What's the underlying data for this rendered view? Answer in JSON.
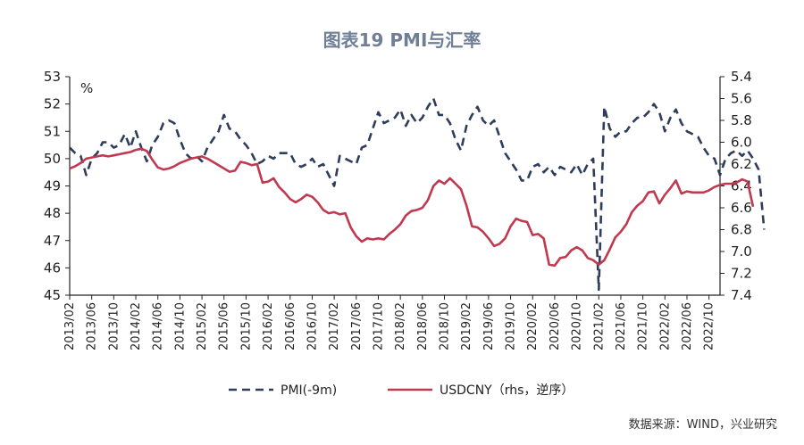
{
  "page": {
    "background": "#ffffff"
  },
  "chart_data": {
    "type": "line",
    "title": "图表19 PMI与汇率",
    "left_unit": "%",
    "source": "数据来源：WIND，兴业研究",
    "left_axis": {
      "min": 45,
      "max": 53,
      "ticks": [
        45,
        46,
        47,
        48,
        49,
        50,
        51,
        52,
        53
      ]
    },
    "right_axis": {
      "min": 5.4,
      "max": 7.4,
      "reversed": true,
      "ticks": [
        "5.4",
        "5.6",
        "5.8",
        "6.0",
        "6.2",
        "6.4",
        "6.6",
        "6.8",
        "7.0",
        "7.2",
        "7.4"
      ]
    },
    "x_axis": {
      "start": "2013/02",
      "end": "2022/12",
      "tick_labels": [
        "2013/02",
        "2013/06",
        "2013/10",
        "2014/02",
        "2014/06",
        "2014/10",
        "2015/02",
        "2015/06",
        "2015/10",
        "2016/02",
        "2016/06",
        "2016/10",
        "2017/02",
        "2017/06",
        "2017/10",
        "2018/02",
        "2018/06",
        "2018/10",
        "2019/02",
        "2019/06",
        "2019/10",
        "2020/02",
        "2020/06",
        "2020/10",
        "2021/02",
        "2021/06",
        "2021/10",
        "2022/02",
        "2022/06",
        "2022/10"
      ]
    },
    "grid": false,
    "legend_position": "bottom",
    "series": [
      {
        "name": "PMI(-9m)",
        "axis": "left",
        "color": "#2e3d5c",
        "style": "dashed",
        "start": "2013/02",
        "values": [
          50.4,
          50.2,
          50.1,
          49.4,
          50.0,
          50.2,
          50.6,
          50.6,
          50.4,
          50.5,
          50.9,
          50.4,
          51.0,
          50.4,
          49.9,
          50.5,
          50.8,
          51.3,
          51.4,
          51.3,
          50.7,
          50.2,
          50.0,
          50.1,
          49.9,
          50.4,
          50.7,
          51.0,
          51.6,
          51.1,
          51.0,
          50.7,
          50.5,
          50.2,
          49.8,
          49.9,
          50.1,
          50.0,
          50.2,
          50.2,
          50.2,
          49.8,
          49.7,
          49.8,
          50.0,
          49.7,
          49.8,
          49.4,
          49.0,
          50.1,
          50.0,
          49.9,
          49.8,
          50.4,
          50.5,
          51.1,
          51.7,
          51.3,
          51.4,
          51.5,
          51.8,
          51.2,
          51.6,
          51.3,
          51.5,
          51.9,
          52.2,
          51.6,
          51.6,
          51.3,
          50.7,
          50.3,
          51.2,
          51.6,
          51.9,
          51.4,
          51.2,
          51.4,
          50.8,
          50.2,
          49.9,
          49.6,
          49.2,
          49.2,
          49.7,
          49.8,
          49.5,
          49.7,
          49.4,
          49.7,
          49.6,
          49.5,
          49.8,
          49.4,
          49.8,
          50.0,
          45.2,
          51.9,
          51.1,
          50.8,
          51.0,
          51.0,
          51.3,
          51.5,
          51.5,
          51.7,
          52.0,
          51.7,
          51.0,
          51.5,
          51.8,
          51.3,
          51.0,
          50.9,
          50.8,
          50.4,
          50.1,
          50.0,
          49.4,
          50.0,
          50.2,
          50.3,
          50.1,
          50.3,
          50.0,
          49.6,
          47.4
        ]
      },
      {
        "name": "USDCNY（rhs，逆序）",
        "axis": "right",
        "color": "#c0394f",
        "style": "solid",
        "start": "2013/02",
        "values": [
          6.24,
          6.22,
          6.19,
          6.15,
          6.14,
          6.13,
          6.12,
          6.13,
          6.12,
          6.11,
          6.1,
          6.09,
          6.07,
          6.06,
          6.08,
          6.16,
          6.23,
          6.25,
          6.24,
          6.22,
          6.19,
          6.17,
          6.15,
          6.14,
          6.13,
          6.15,
          6.18,
          6.21,
          6.24,
          6.27,
          6.26,
          6.18,
          6.19,
          6.21,
          6.2,
          6.37,
          6.36,
          6.33,
          6.41,
          6.46,
          6.52,
          6.55,
          6.52,
          6.48,
          6.5,
          6.55,
          6.62,
          6.65,
          6.64,
          6.66,
          6.65,
          6.78,
          6.86,
          6.91,
          6.88,
          6.89,
          6.88,
          6.89,
          6.84,
          6.8,
          6.75,
          6.67,
          6.63,
          6.62,
          6.6,
          6.53,
          6.4,
          6.35,
          6.38,
          6.33,
          6.38,
          6.43,
          6.58,
          6.77,
          6.78,
          6.82,
          6.88,
          6.95,
          6.93,
          6.88,
          6.77,
          6.7,
          6.72,
          6.73,
          6.85,
          6.84,
          6.88,
          7.12,
          7.13,
          7.06,
          7.05,
          6.99,
          6.96,
          6.99,
          7.06,
          7.08,
          7.12,
          7.08,
          6.98,
          6.87,
          6.82,
          6.75,
          6.64,
          6.58,
          6.54,
          6.46,
          6.45,
          6.56,
          6.48,
          6.42,
          6.35,
          6.47,
          6.45,
          6.46,
          6.46,
          6.46,
          6.44,
          6.41,
          6.39,
          6.38,
          6.38,
          6.37,
          6.34,
          6.36,
          6.59
        ]
      }
    ]
  }
}
